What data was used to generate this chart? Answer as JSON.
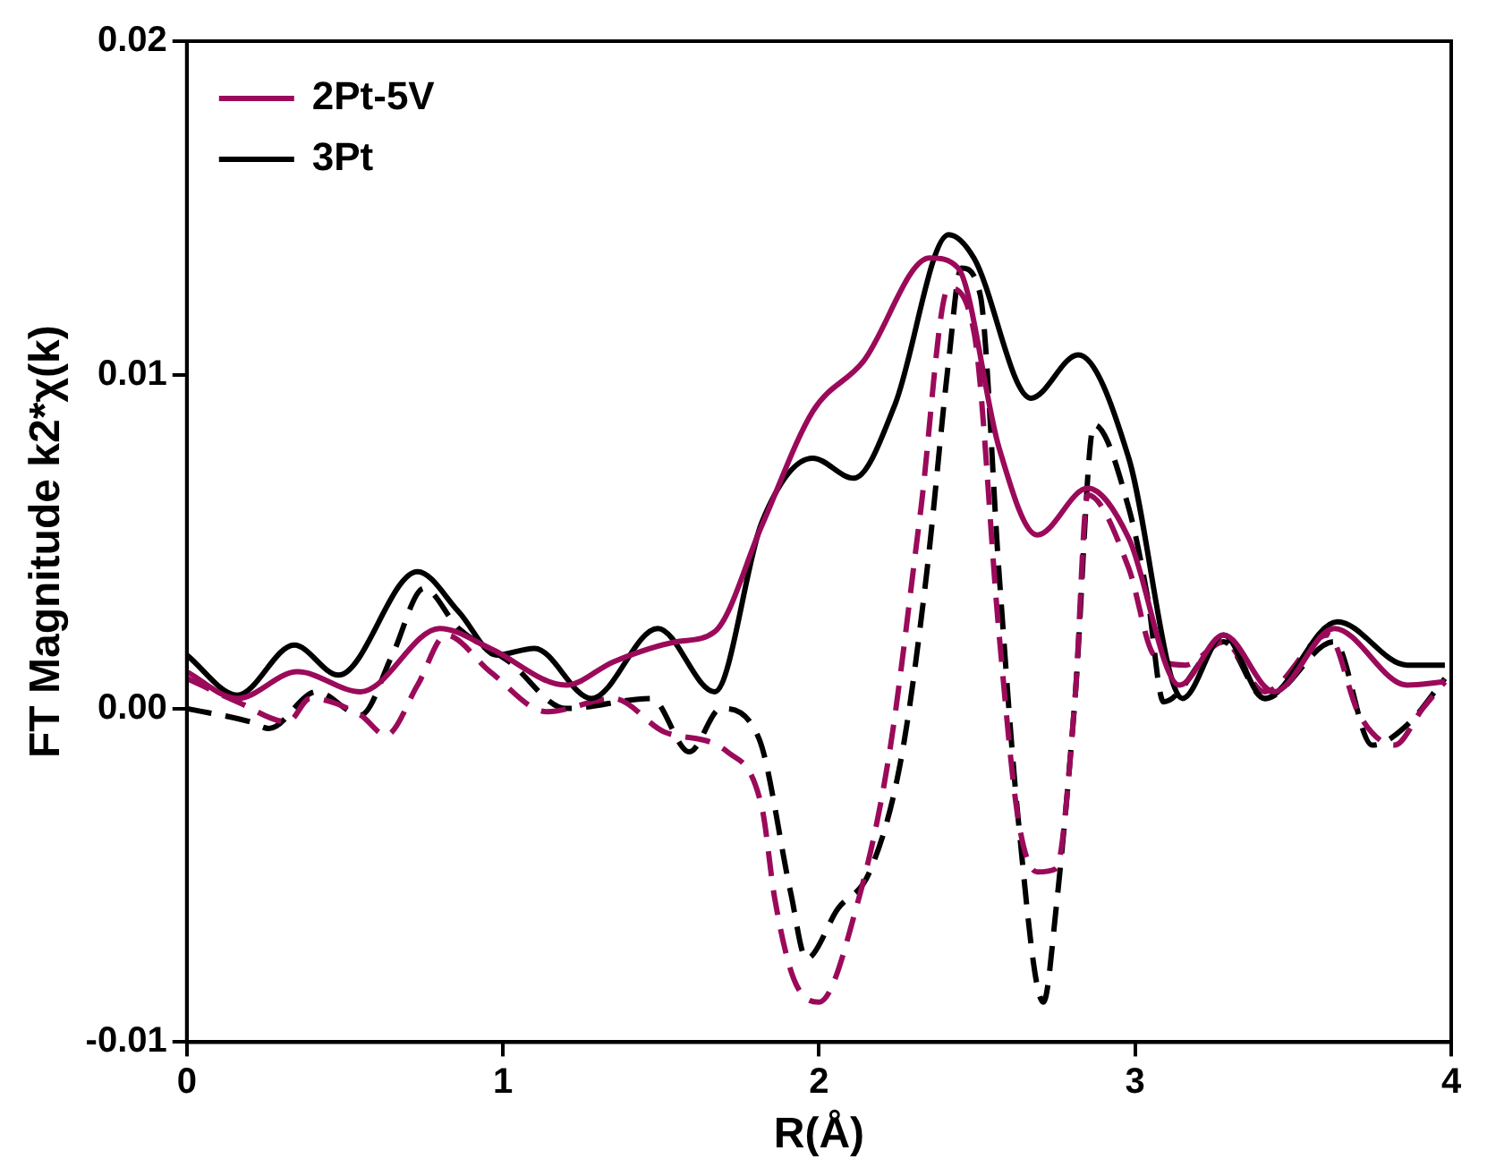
{
  "chart_data": {
    "type": "line",
    "xlabel": "R(Å)",
    "ylabel": "FT Magnitude k2*χ(k)",
    "xlim": [
      0,
      4
    ],
    "xticks": [
      0,
      1,
      2,
      3,
      4
    ],
    "ylim": [
      -0.01,
      0.02
    ],
    "yticks": [
      {
        "value": -0.01,
        "label": "-0.01"
      },
      {
        "value": 0,
        "label": "0.00"
      },
      {
        "value": 0.01,
        "label": "0.01"
      },
      {
        "value": 0.02,
        "label": "0.02"
      }
    ],
    "grid": false,
    "legend": "top left",
    "marker": "none",
    "series": [
      {
        "name": "2Pt-5V",
        "color": "#9b0a5a",
        "line_style": "solid",
        "x": [
          0,
          0.16,
          0.35,
          0.55,
          0.8,
          0.96,
          1.2,
          1.35,
          1.55,
          1.67,
          1.82,
          1.98,
          2.14,
          2.35,
          2.44,
          2.57,
          2.69,
          2.85,
          2.98,
          3.14,
          3.28,
          3.44,
          3.63,
          3.86,
          3.98
        ],
        "values": [
          0.0011,
          0.0003,
          0.0011,
          0.0005,
          0.0024,
          0.0018,
          0.0007,
          0.0014,
          0.002,
          0.0023,
          0.0055,
          0.0089,
          0.0104,
          0.0135,
          0.0132,
          0.0078,
          0.0052,
          0.0066,
          0.0051,
          0.0007,
          0.0022,
          0.0005,
          0.0024,
          0.0007,
          0.0008
        ]
      },
      {
        "name": "3Pt",
        "color": "#000000",
        "line_style": "solid",
        "x": [
          0,
          0.16,
          0.34,
          0.48,
          0.73,
          0.86,
          0.98,
          1.1,
          1.28,
          1.49,
          1.67,
          1.82,
          1.98,
          2.11,
          2.24,
          2.41,
          2.49,
          2.67,
          2.82,
          2.98,
          3.15,
          3.28,
          3.41,
          3.64,
          3.86,
          3.98
        ],
        "values": [
          0.0016,
          0.0004,
          0.0019,
          0.001,
          0.0041,
          0.0029,
          0.0016,
          0.0018,
          0.0003,
          0.0024,
          0.0005,
          0.0056,
          0.0075,
          0.0069,
          0.0091,
          0.0142,
          0.0135,
          0.0093,
          0.0106,
          0.0075,
          0.0003,
          0.0022,
          0.0003,
          0.0026,
          0.0013,
          0.0013
        ]
      },
      {
        "color": "#9b0a5a",
        "line_style": "dashed",
        "x": [
          0,
          0.16,
          0.32,
          0.39,
          0.55,
          0.63,
          0.73,
          0.82,
          0.96,
          1.14,
          1.35,
          1.51,
          1.71,
          1.82,
          1.86,
          1.92,
          2.0,
          2.12,
          2.22,
          2.32,
          2.41,
          2.49,
          2.57,
          2.63,
          2.69,
          2.75,
          2.81,
          2.85,
          2.98,
          3.06,
          3.16,
          3.28,
          3.41,
          3.61,
          3.71,
          3.82,
          3.91,
          3.98
        ],
        "values": [
          0.0009,
          0.0002,
          -0.0004,
          0.0003,
          -0.0002,
          -0.0008,
          0.0007,
          0.0022,
          0.0011,
          -0.0001,
          0.0003,
          -0.0007,
          -0.0013,
          -0.003,
          -0.0057,
          -0.0081,
          -0.0088,
          -0.0059,
          -0.0015,
          0.0058,
          0.0126,
          0.0113,
          0.0022,
          -0.0033,
          -0.0049,
          -0.0048,
          0.0003,
          0.0064,
          0.0042,
          0.0016,
          0.0013,
          0.002,
          0.0005,
          0.0022,
          -0.0002,
          -0.0011,
          0,
          0.0008
        ]
      },
      {
        "color": "#000000",
        "line_style": "dashed",
        "x": [
          0,
          0.2,
          0.26,
          0.41,
          0.55,
          0.65,
          0.75,
          0.86,
          1.02,
          1.2,
          1.47,
          1.59,
          1.69,
          1.81,
          1.91,
          1.96,
          2.06,
          2.16,
          2.26,
          2.34,
          2.41,
          2.45,
          2.51,
          2.57,
          2.63,
          2.71,
          2.75,
          2.81,
          2.87,
          2.98,
          3.04,
          3.09,
          3.28,
          3.41,
          3.63,
          3.75,
          3.86,
          3.98
        ],
        "values": [
          0,
          -0.0004,
          -0.0006,
          0.0005,
          -0.0002,
          0.0016,
          0.0036,
          0.0024,
          0.0014,
          0,
          0.0003,
          -0.0013,
          0,
          -0.0009,
          -0.0055,
          -0.0075,
          -0.006,
          -0.0049,
          -0.0015,
          0.004,
          0.0104,
          0.0132,
          0.0124,
          0.004,
          -0.0033,
          -0.0088,
          -0.006,
          0.0003,
          0.0085,
          0.006,
          0.0033,
          0.0002,
          0.002,
          0.0003,
          0.002,
          -0.0011,
          -0.0005,
          0.0009
        ]
      }
    ]
  }
}
